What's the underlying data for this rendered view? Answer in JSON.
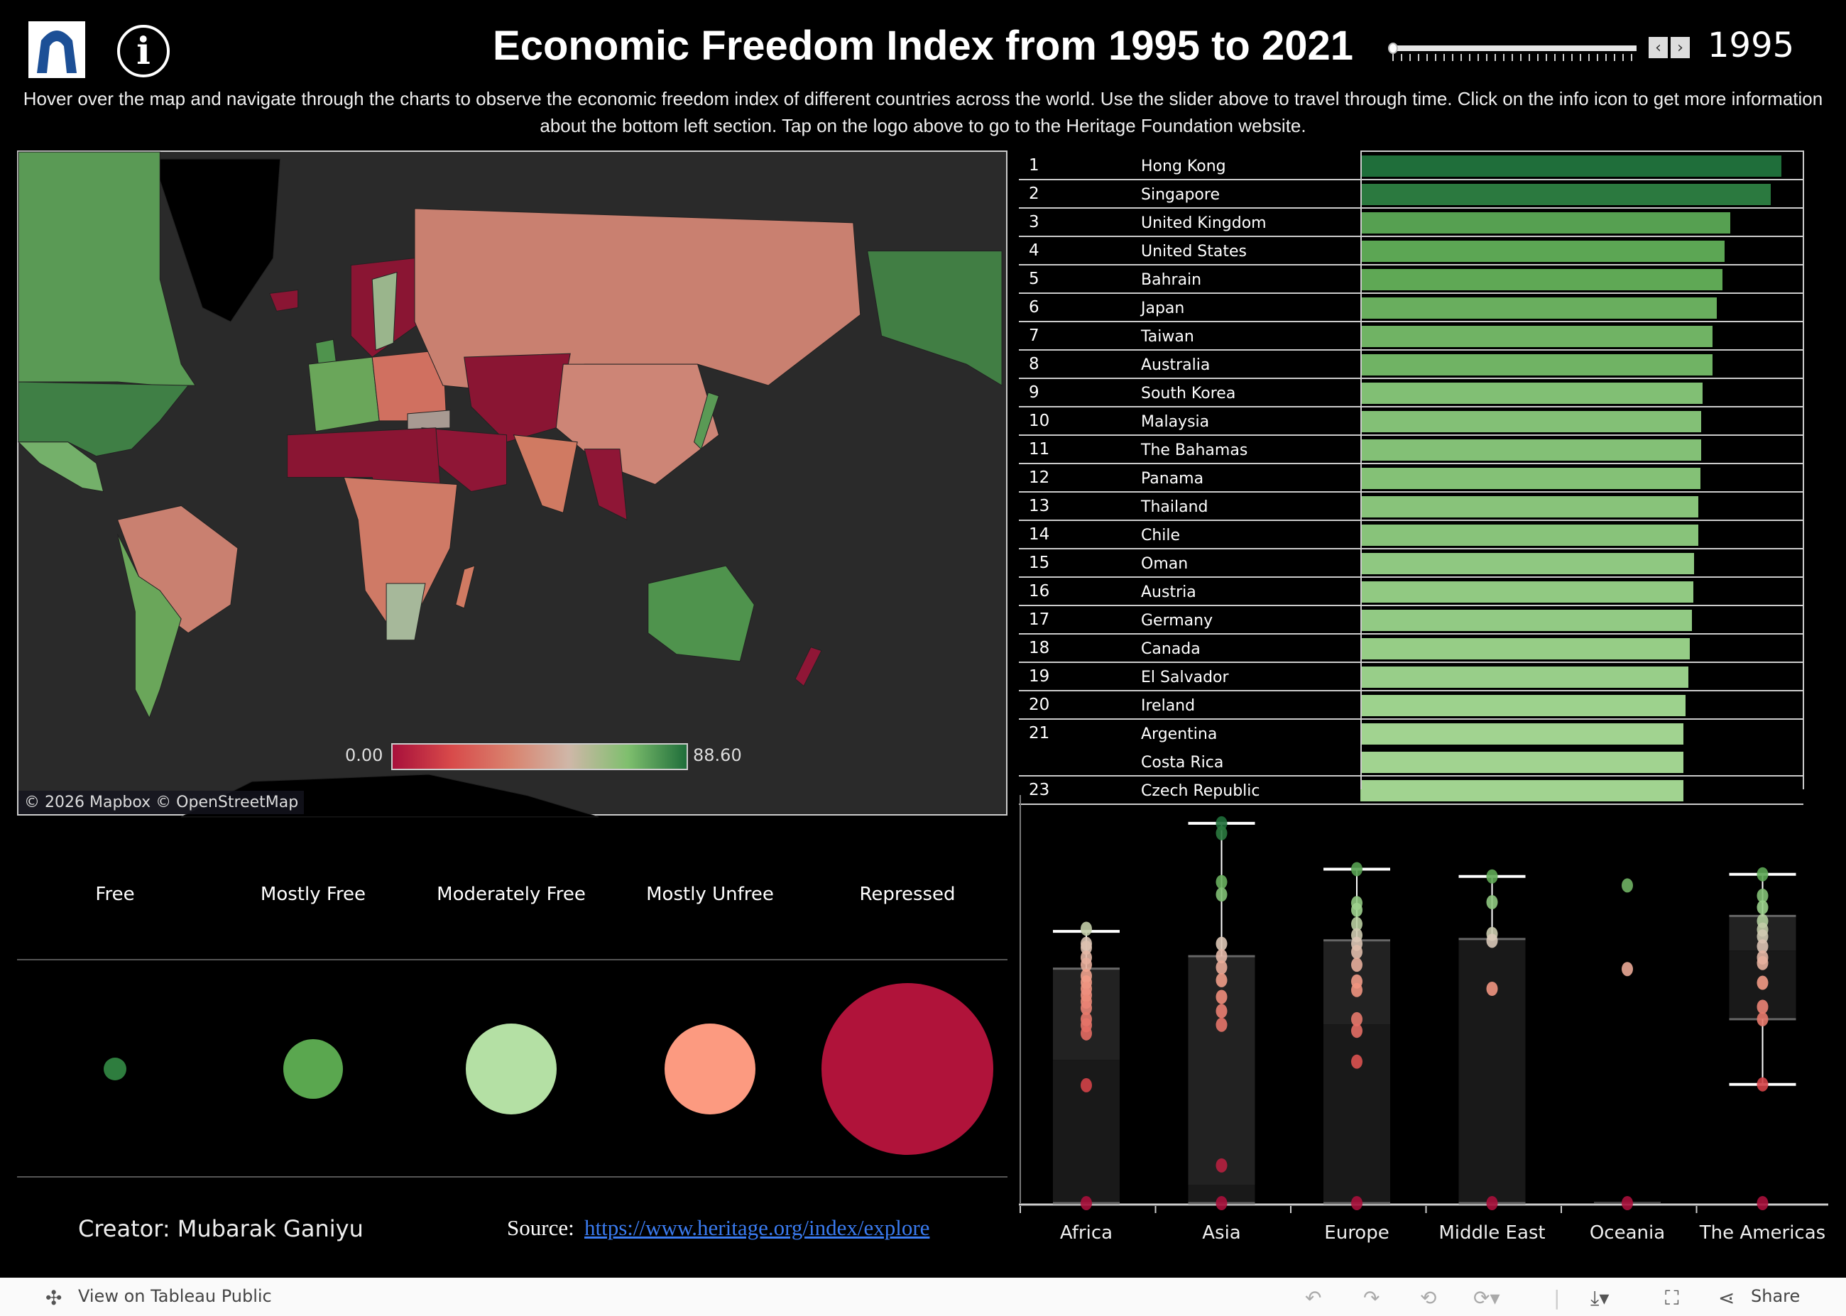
{
  "header": {
    "logo_alt": "Heritage Foundation",
    "logo_color": "#1c4f96",
    "info_icon": "info-icon",
    "title": "Economic Freedom Index from 1995 to 2021",
    "slider": {
      "min": 1995,
      "max": 2021,
      "value": 1995
    },
    "year": "1995",
    "prev_icon": "chevron-left-icon",
    "next_icon": "chevron-right-icon",
    "subtitle": "Hover over the map and navigate through the charts to observe the economic freedom index of different countries across the world. Use the slider above to travel through time. Click on the info icon to get more information about the bottom left section. Tap on the logo above to go to the Heritage Foundation website."
  },
  "map": {
    "legend_min": "0.00",
    "legend_max": "88.60",
    "legend_colors": [
      "#a8103b",
      "#d84a4a",
      "#d9826e",
      "#cfb7a8",
      "#7fbf6e",
      "#1f6e3a"
    ],
    "attribution": "© 2026 Mapbox  © OpenStreetMap"
  },
  "ranking": [
    {
      "rank": "1",
      "country": "Hong Kong",
      "score": 88.6
    },
    {
      "rank": "2",
      "country": "Singapore",
      "score": 86.3
    },
    {
      "rank": "3",
      "country": "United Kingdom",
      "score": 77.9
    },
    {
      "rank": "4",
      "country": "United States",
      "score": 76.7
    },
    {
      "rank": "5",
      "country": "Bahrain",
      "score": 76.2
    },
    {
      "rank": "6",
      "country": "Japan",
      "score": 75.0
    },
    {
      "rank": "7",
      "country": "Taiwan",
      "score": 74.1
    },
    {
      "rank": "8",
      "country": "Australia",
      "score": 74.1
    },
    {
      "rank": "9",
      "country": "South Korea",
      "score": 72.0
    },
    {
      "rank": "10",
      "country": "Malaysia",
      "score": 71.7
    },
    {
      "rank": "11",
      "country": "The Bahamas",
      "score": 71.7
    },
    {
      "rank": "12",
      "country": "Panama",
      "score": 71.6
    },
    {
      "rank": "13",
      "country": "Thailand",
      "score": 71.1
    },
    {
      "rank": "14",
      "country": "Chile",
      "score": 71.1
    },
    {
      "rank": "15",
      "country": "Oman",
      "score": 70.2
    },
    {
      "rank": "16",
      "country": "Austria",
      "score": 70.0
    },
    {
      "rank": "17",
      "country": "Germany",
      "score": 69.8
    },
    {
      "rank": "18",
      "country": "Canada",
      "score": 69.4
    },
    {
      "rank": "19",
      "country": "El Salvador",
      "score": 69.1
    },
    {
      "rank": "20",
      "country": "Ireland",
      "score": 68.5
    },
    {
      "rank": "21",
      "country": "Argentina",
      "score": 68.0
    },
    {
      "rank": "",
      "country": "Costa Rica",
      "score": 68.0
    },
    {
      "rank": "23",
      "country": "Czech Republic",
      "score": 68.0
    }
  ],
  "categories": [
    {
      "label": "Free",
      "color": "#2e7d3e",
      "relative_count": 1
    },
    {
      "label": "Mostly Free",
      "color": "#5aa74f",
      "relative_count": 7
    },
    {
      "label": "Moderately Free",
      "color": "#b4e0a4",
      "relative_count": 16
    },
    {
      "label": "Mostly Unfree",
      "color": "#fc9a80",
      "relative_count": 16
    },
    {
      "label": "Repressed",
      "color": "#b0133a",
      "relative_count": 57
    }
  ],
  "footer": {
    "creator": "Creator: Mubarak Ganiyu",
    "source_label": "Source:",
    "source_link": "https://www.heritage.org/index/explore"
  },
  "chart_data": {
    "type": "box",
    "categories": [
      "Africa",
      "Asia",
      "Europe",
      "Middle East",
      "Oceania",
      "The Americas"
    ],
    "ylim": [
      0,
      88.6
    ],
    "boxes": [
      {
        "region": "Africa",
        "q1": 0,
        "median": 33.4,
        "q3": 54.7,
        "whisker_low": 0,
        "whisker_high": 63.4,
        "points": [
          64,
          60.5,
          59.6,
          57.3,
          55.6,
          53,
          51.5,
          50,
          48.5,
          47,
          45.5,
          42.9,
          41.5,
          39.6,
          27.5,
          0
        ]
      },
      {
        "region": "Asia",
        "q1": 0,
        "median": 4.3,
        "q3": 57.6,
        "whisker_low": 0,
        "whisker_high": 88.6,
        "points": [
          88.6,
          86.3,
          74.9,
          72,
          60.5,
          57.6,
          55,
          52,
          48.1,
          44.8,
          41.6,
          8.8,
          0
        ]
      },
      {
        "region": "Europe",
        "q1": 0,
        "median": 41.7,
        "q3": 61.3,
        "whisker_low": 0,
        "whisker_high": 77.9,
        "points": [
          77.9,
          70,
          68.4,
          65.1,
          62.5,
          60.5,
          58.6,
          55.6,
          51.7,
          49.7,
          42.9,
          40.2,
          33,
          0
        ]
      },
      {
        "region": "Middle East",
        "q1": 0,
        "median": 61.6,
        "q3": 61.6,
        "whisker_low": 0,
        "whisker_high": 76.2,
        "points": [
          76.2,
          70.2,
          62.8,
          61.2,
          50,
          0
        ]
      },
      {
        "region": "Oceania",
        "q1": 0,
        "median": 0,
        "q3": 0,
        "whisker_low": 0,
        "whisker_high": 0,
        "points": [
          74.1,
          54.6,
          0
        ]
      },
      {
        "region": "The Americas",
        "q1": 42.9,
        "median": 58.9,
        "q3": 67,
        "whisker_low": 27.7,
        "whisker_high": 76.7,
        "points": [
          76.7,
          71.7,
          69,
          65.8,
          63.8,
          62.2,
          59.9,
          57.3,
          56,
          51.4,
          45.8,
          42.9,
          27.7,
          0
        ]
      }
    ]
  },
  "toolbar": {
    "view_on": "View on Tableau Public",
    "share": "Share",
    "icons": [
      "undo-icon",
      "redo-icon",
      "revert-icon",
      "refresh-icon",
      "download-icon",
      "fullscreen-icon",
      "share-icon"
    ]
  }
}
